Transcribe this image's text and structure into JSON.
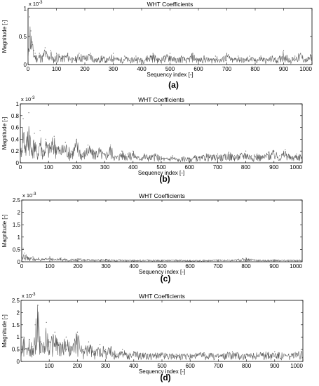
{
  "chart_data": [
    {
      "type": "line",
      "title": "WHT Coefficients",
      "xlabel": "Sequency index [-]",
      "ylabel": "Magnitude [-]",
      "y_scale_label": "x 10",
      "y_scale_exp": "-3",
      "xlim": [
        0,
        1000
      ],
      "ylim": [
        0,
        1
      ],
      "xticks": [
        "0",
        "100",
        "200",
        "300",
        "400",
        "500",
        "600",
        "700",
        "800",
        "900",
        "1000"
      ],
      "yticks": [
        "0",
        "0.5",
        "1"
      ],
      "yticks_values": [
        0,
        0.5,
        1
      ],
      "caption": "(a)",
      "series": [
        {
          "x": [
            0,
            5,
            10,
            15,
            20,
            25,
            30,
            40,
            50,
            60,
            70,
            80,
            90,
            100,
            120,
            140,
            160,
            180,
            200,
            220,
            240,
            260,
            280,
            300,
            320,
            340,
            360,
            380,
            400,
            420,
            440,
            460,
            480,
            500,
            520,
            540,
            560,
            580,
            600,
            620,
            640,
            660,
            680,
            700,
            720,
            740,
            760,
            780,
            800,
            820,
            840,
            860,
            880,
            900,
            920,
            940,
            960,
            980,
            1000
          ],
          "values": [
            0.05,
            0.85,
            0.6,
            0.4,
            0.25,
            0.2,
            0.15,
            0.2,
            0.15,
            0.3,
            0.15,
            0.25,
            0.1,
            0.2,
            0.15,
            0.2,
            0.1,
            0.2,
            0.15,
            0.2,
            0.1,
            0.15,
            0.1,
            0.2,
            0.1,
            0.15,
            0.1,
            0.15,
            0.1,
            0.15,
            0.2,
            0.1,
            0.15,
            0.2,
            0.1,
            0.15,
            0.1,
            0.2,
            0.1,
            0.15,
            0.1,
            0.15,
            0.1,
            0.2,
            0.1,
            0.15,
            0.1,
            0.15,
            0.1,
            0.15,
            0.1,
            0.15,
            0.1,
            0.25,
            0.1,
            0.15,
            0.2,
            0.1,
            0.2
          ]
        }
      ]
    },
    {
      "type": "line",
      "title": "WHT Coefficients",
      "xlabel": "Sequency index [-]",
      "ylabel": "Magnitude [-]",
      "y_scale_label": "x 10",
      "y_scale_exp": "-3",
      "xlim": [
        0,
        1000
      ],
      "ylim": [
        0,
        1
      ],
      "xticks": [
        "0",
        "100",
        "200",
        "300",
        "400",
        "500",
        "600",
        "700",
        "800",
        "900",
        "1000"
      ],
      "yticks": [
        "0",
        "0.2",
        "0.4",
        "0.6",
        "0.8",
        "1"
      ],
      "yticks_values": [
        0,
        0.2,
        0.4,
        0.6,
        0.8,
        1
      ],
      "caption": "(b)",
      "series": [
        {
          "x": [
            0,
            10,
            20,
            30,
            40,
            50,
            60,
            70,
            80,
            90,
            100,
            120,
            140,
            160,
            180,
            200,
            220,
            240,
            260,
            280,
            300,
            320,
            340,
            360,
            380,
            400,
            420,
            440,
            460,
            480,
            500,
            520,
            540,
            560,
            580,
            600,
            620,
            640,
            660,
            680,
            700,
            720,
            740,
            760,
            780,
            800,
            820,
            840,
            860,
            880,
            900,
            920,
            940,
            960,
            980,
            1000
          ],
          "values": [
            0.1,
            0.75,
            0.3,
            0.85,
            0.2,
            0.5,
            0.15,
            0.55,
            0.2,
            0.4,
            0.3,
            0.45,
            0.25,
            0.35,
            0.2,
            0.4,
            0.15,
            0.3,
            0.2,
            0.25,
            0.15,
            0.3,
            0.1,
            0.2,
            0.15,
            0.2,
            0.1,
            0.15,
            0.12,
            0.15,
            0.1,
            0.08,
            0.12,
            0.06,
            0.1,
            0.08,
            0.12,
            0.1,
            0.15,
            0.12,
            0.15,
            0.12,
            0.18,
            0.12,
            0.15,
            0.2,
            0.12,
            0.15,
            0.12,
            0.18,
            0.2,
            0.12,
            0.22,
            0.1,
            0.15,
            0.15
          ]
        }
      ]
    },
    {
      "type": "line",
      "title": "WHT Coefficients",
      "xlabel": "Sequency index [-]",
      "ylabel": "Magnitude [-]",
      "y_scale_label": "x 10",
      "y_scale_exp": "-3",
      "xlim": [
        0,
        1000
      ],
      "ylim": [
        0,
        2.5
      ],
      "xticks": [
        "0",
        "100",
        "200",
        "300",
        "400",
        "500",
        "600",
        "700",
        "800",
        "900",
        "1000"
      ],
      "yticks": [
        "0",
        "0.5",
        "1",
        "1.5",
        "2",
        "2.5"
      ],
      "yticks_values": [
        0,
        0.5,
        1,
        1.5,
        2,
        2.5
      ],
      "caption": "(c)",
      "series": [
        {
          "x": [
            0,
            5,
            10,
            20,
            30,
            40,
            50,
            60,
            80,
            100,
            120,
            140,
            160,
            180,
            200,
            250,
            300,
            350,
            400,
            450,
            500,
            550,
            600,
            650,
            700,
            750,
            800,
            850,
            900,
            950,
            1000
          ],
          "values": [
            0.1,
            0.55,
            0.35,
            0.2,
            0.15,
            0.2,
            0.1,
            0.15,
            0.1,
            0.2,
            0.1,
            0.15,
            0.1,
            0.1,
            0.12,
            0.08,
            0.1,
            0.08,
            0.07,
            0.08,
            0.07,
            0.08,
            0.06,
            0.07,
            0.08,
            0.07,
            0.15,
            0.07,
            0.08,
            0.07,
            0.08
          ]
        }
      ]
    },
    {
      "type": "line",
      "title": "WHT Coefficients",
      "xlabel": "Sequency index [-]",
      "ylabel": "Magnitude [-]",
      "y_scale_label": "x 10",
      "y_scale_exp": "-3",
      "xlim": [
        0,
        1000
      ],
      "ylim": [
        0,
        2.5
      ],
      "xticks": [
        "100",
        "200",
        "300",
        "400",
        "500",
        "600",
        "700",
        "800",
        "900",
        "1000"
      ],
      "xticks_values": [
        100,
        200,
        300,
        400,
        500,
        600,
        700,
        800,
        900,
        1000
      ],
      "yticks": [
        "0",
        "0.5",
        "1",
        "1.5",
        "2",
        "2.5"
      ],
      "yticks_values": [
        0,
        0.5,
        1,
        1.5,
        2,
        2.5
      ],
      "caption": "(d)",
      "series": [
        {
          "x": [
            0,
            10,
            20,
            30,
            40,
            50,
            60,
            70,
            80,
            90,
            100,
            120,
            140,
            160,
            180,
            200,
            220,
            240,
            260,
            280,
            300,
            320,
            340,
            360,
            380,
            400,
            450,
            500,
            550,
            600,
            650,
            700,
            750,
            800,
            850,
            900,
            950,
            1000
          ],
          "values": [
            0.3,
            1.0,
            0.5,
            0.9,
            0.6,
            1.5,
            2.3,
            0.8,
            0.6,
            1.6,
            0.8,
            1.2,
            0.7,
            1.0,
            0.6,
            1.2,
            0.5,
            0.8,
            0.4,
            0.7,
            0.5,
            0.6,
            0.3,
            0.5,
            0.3,
            0.4,
            0.3,
            0.35,
            0.3,
            0.3,
            0.35,
            0.3,
            0.4,
            0.3,
            0.35,
            0.4,
            0.3,
            0.4
          ]
        }
      ]
    }
  ]
}
